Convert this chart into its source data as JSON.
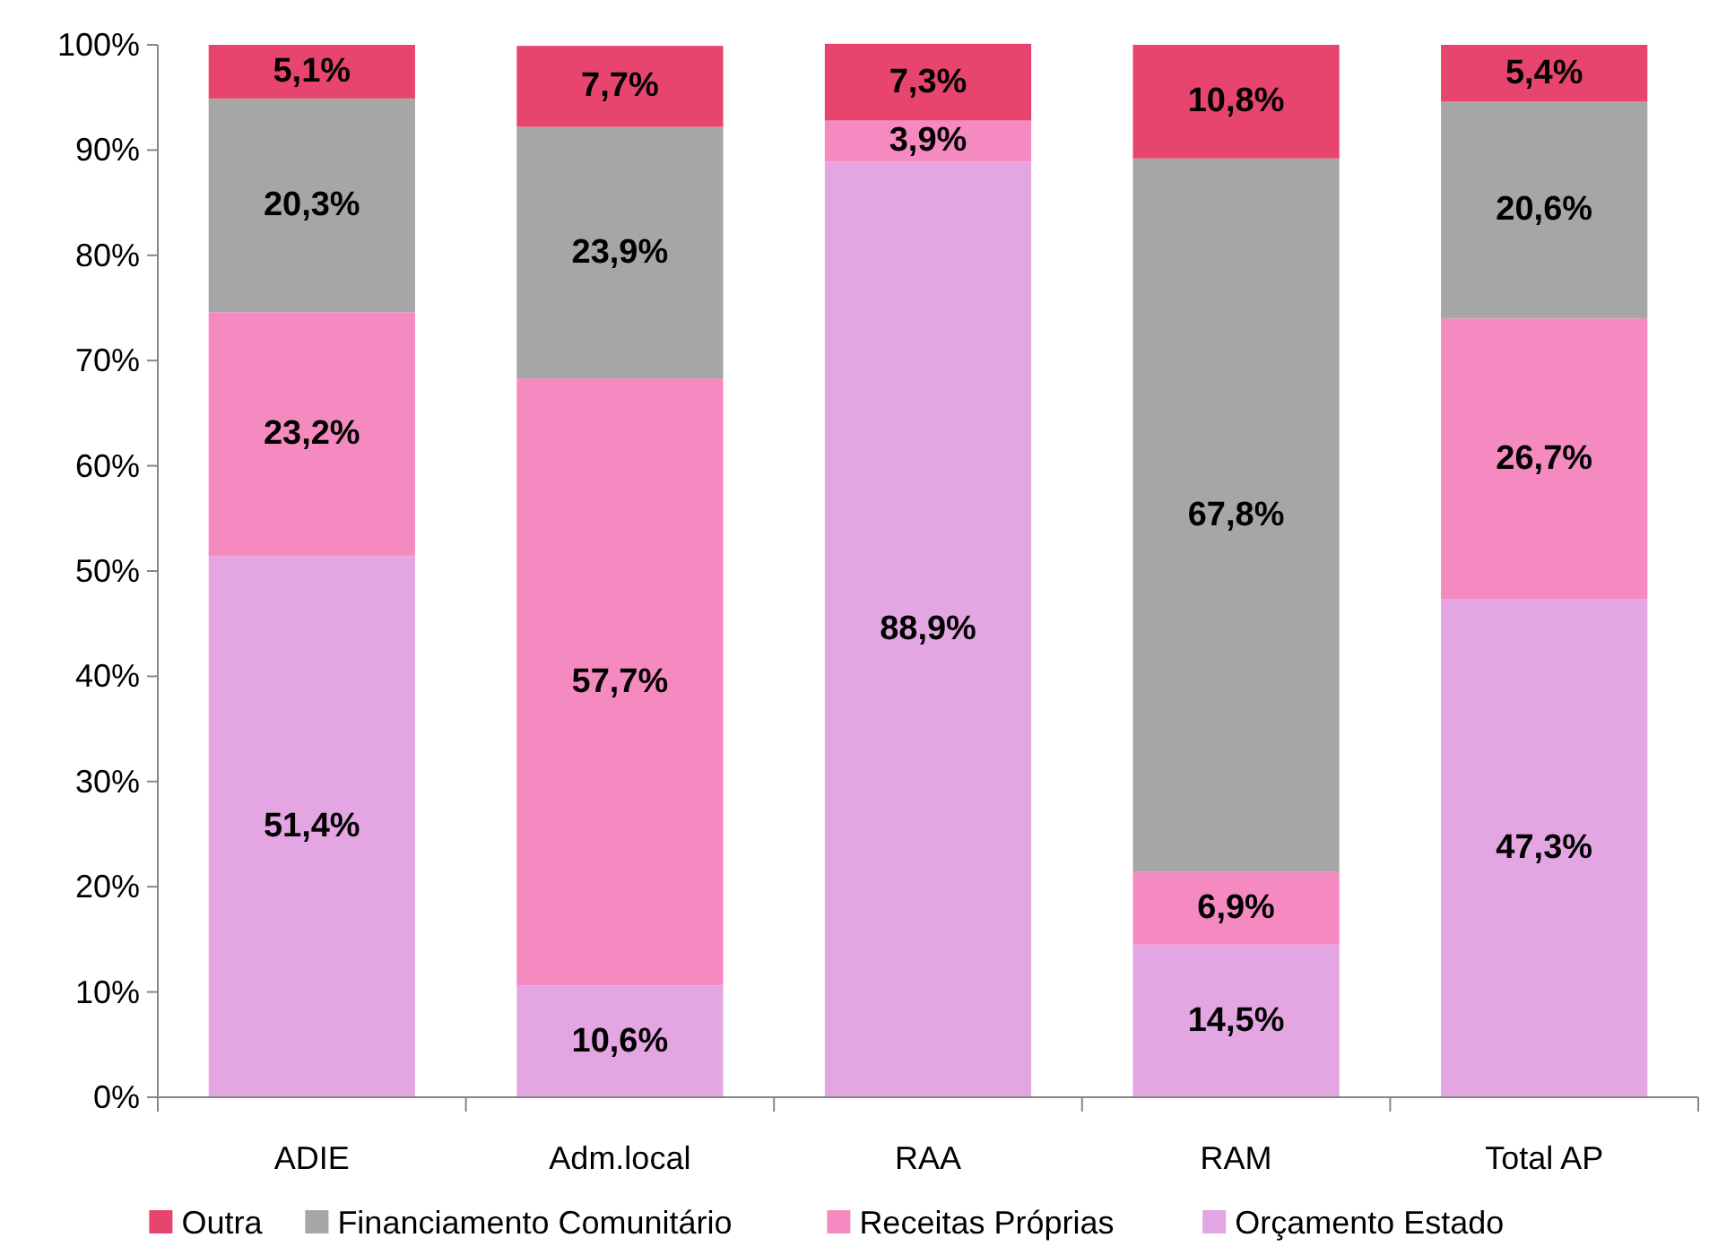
{
  "chart_data": {
    "type": "bar",
    "stacked": true,
    "categories": [
      "ADIE",
      "Adm.local",
      "RAA",
      "RAM",
      "Total AP"
    ],
    "series": [
      {
        "name": "Orçamento Estado",
        "color": "#e3a6e3",
        "values": [
          51.4,
          10.6,
          88.9,
          14.5,
          47.3
        ],
        "value_labels": [
          "51,4%",
          "10,6%",
          "88,9%",
          "14,5%",
          "47,3%"
        ]
      },
      {
        "name": "Receitas Próprias",
        "color": "#f58ac0",
        "values": [
          23.2,
          57.7,
          3.9,
          6.9,
          26.7
        ],
        "value_labels": [
          "23,2%",
          "57,7%",
          "3,9%",
          "6,9%",
          "26,7%"
        ]
      },
      {
        "name": "Financiamento Comunitário",
        "color": "#a6a6a6",
        "values": [
          20.3,
          23.9,
          0,
          67.8,
          20.6
        ],
        "value_labels": [
          "20,3%",
          "23,9%",
          null,
          "67,8%",
          "20,6%"
        ]
      },
      {
        "name": "Outra",
        "color": "#e8456e",
        "values": [
          5.1,
          7.7,
          7.3,
          10.8,
          5.4
        ],
        "value_labels": [
          "5,1%",
          "7,7%",
          "7,3%",
          "10,8%",
          "5,4%"
        ]
      }
    ],
    "ylim": [
      0,
      100
    ],
    "yticks": [
      {
        "value": 0,
        "label": "0%"
      },
      {
        "value": 10,
        "label": "10%"
      },
      {
        "value": 20,
        "label": "20%"
      },
      {
        "value": 30,
        "label": "30%"
      },
      {
        "value": 40,
        "label": "40%"
      },
      {
        "value": 50,
        "label": "50%"
      },
      {
        "value": 60,
        "label": "60%"
      },
      {
        "value": 70,
        "label": "70%"
      },
      {
        "value": 80,
        "label": "80%"
      },
      {
        "value": 90,
        "label": "90%"
      },
      {
        "value": 100,
        "label": "100%"
      }
    ],
    "grid": false,
    "legend": "bottom"
  }
}
